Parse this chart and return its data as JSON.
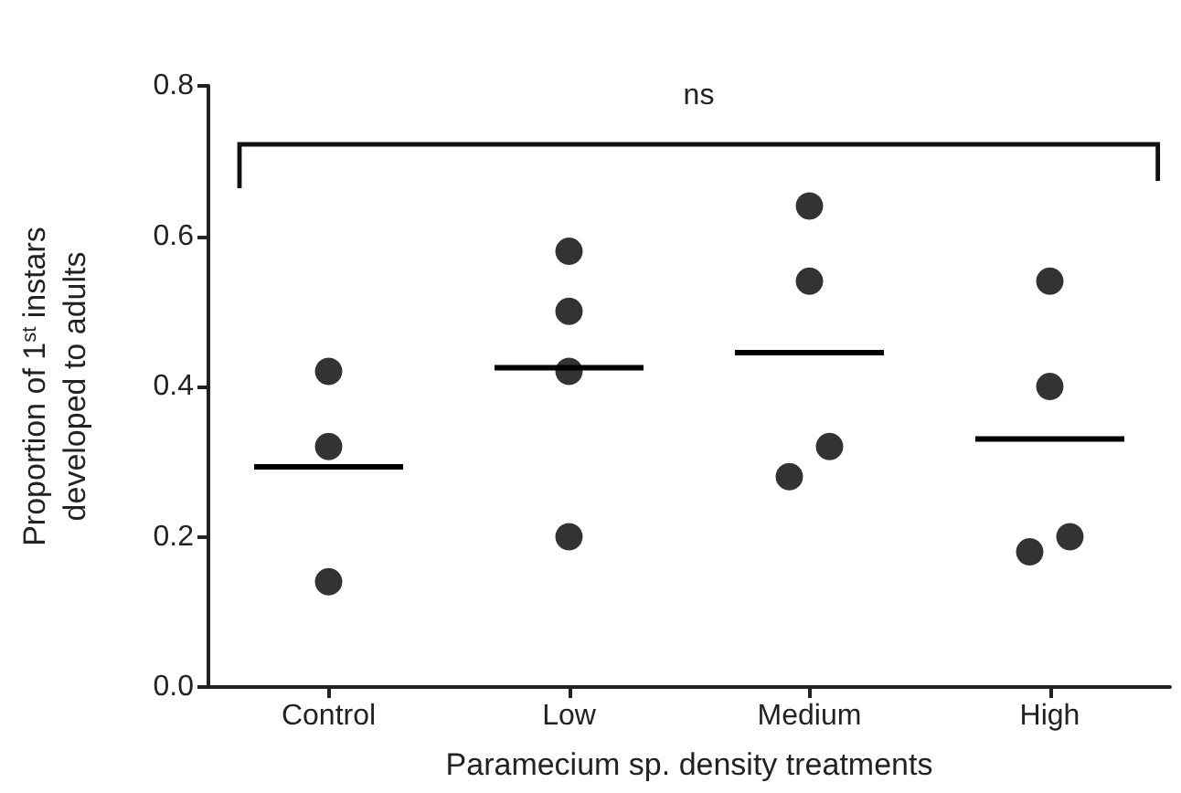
{
  "chart_data": {
    "type": "scatter",
    "categories": [
      "Control",
      "Low",
      "Medium",
      "High"
    ],
    "xlabel": "Paramecium sp. density treatments",
    "ylabel": "Proportion of 1$^{st}$ instars\ndeveloped to adults",
    "ylim": [
      0,
      0.8
    ],
    "yticks": [
      {
        "value": 0,
        "label": "0.0"
      },
      0.2,
      0.4,
      0.6,
      0.8
    ],
    "grid": false,
    "series": [
      {
        "marker": "circle",
        "color": "#000000",
        "x": [
          "Control",
          "Control",
          "Control",
          "Low",
          "Low",
          "Low",
          "Low",
          "Medium",
          "Medium",
          "Medium",
          "Medium",
          "High",
          "High",
          "High",
          "High"
        ],
        "values": [
          0.42,
          0.32,
          0.14,
          0.58,
          0.5,
          0.42,
          0.2,
          0.64,
          0.54,
          0.28,
          0.32,
          0.54,
          0.4,
          0.18,
          0.2
        ]
      },
      {
        "type": "box",
        "color": "#000000",
        "boxes": [
          {
            "low": 0.293,
            "q1": 0.293,
            "median": 0.293,
            "q3": 0.293,
            "high": 0.293
          },
          {
            "low": 0.425,
            "q1": 0.425,
            "median": 0.425,
            "q3": 0.425,
            "high": 0.425
          },
          {
            "low": 0.445,
            "q1": 0.445,
            "median": 0.445,
            "q3": 0.445,
            "high": 0.445
          },
          {
            "low": 0.33,
            "q1": 0.33,
            "median": 0.33,
            "q3": 0.33,
            "high": 0.33
          }
        ]
      }
    ],
    "annotations": [
      "ns"
    ]
  }
}
